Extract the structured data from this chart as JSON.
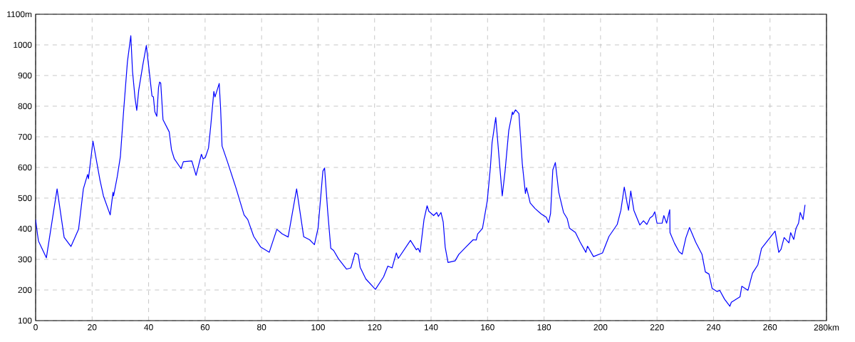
{
  "chart_data": {
    "type": "line",
    "x": [
      0,
      0.7,
      1,
      3.8,
      7.6,
      10.1,
      12.5,
      15.2,
      16.9,
      18.4,
      18.7,
      20.3,
      22.8,
      24,
      26.4,
      27.4,
      27.6,
      28.9,
      30,
      31.2,
      32.5,
      33.7,
      34.3,
      35.2,
      35.8,
      36.5,
      38,
      39.2,
      40.5,
      41.2,
      41.7,
      42.2,
      42.9,
      43.5,
      43.9,
      44.3,
      45.1,
      47.3,
      48.1,
      49.1,
      51.5,
      52.3,
      55.3,
      56.8,
      58.7,
      59.3,
      60.1,
      61.2,
      62,
      63.1,
      63.5,
      65,
      65.5,
      66,
      67.9,
      70.9,
      73.8,
      75.1,
      77.2,
      79.7,
      82.7,
      85.4,
      87.3,
      89.4,
      92.4,
      94.9,
      97,
      98.7,
      100,
      101.7,
      102.3,
      103.4,
      104.5,
      105.5,
      107.2,
      110.1,
      111.6,
      113.1,
      114.2,
      114.9,
      116.9,
      120.3,
      123.2,
      124.7,
      126.2,
      127.7,
      128.4,
      132.7,
      134.8,
      135.4,
      136.1,
      137.5,
      138.6,
      139.2,
      140.9,
      142,
      142.6,
      143.5,
      144.3,
      145,
      146,
      148.5,
      149.8,
      152.3,
      154.9,
      156,
      156.5,
      158.2,
      159.9,
      161,
      161.6,
      162.9,
      163.7,
      164.6,
      165.2,
      166.2,
      167.5,
      168.8,
      169,
      169.9,
      171.1,
      172.3,
      173.4,
      173.8,
      175.1,
      176.8,
      178.9,
      180.8,
      181.6,
      182.3,
      183.1,
      184,
      185.2,
      186.9,
      188.2,
      189,
      191.1,
      192.8,
      194.8,
      195.4,
      197.5,
      200.7,
      203,
      205.9,
      207.2,
      208.4,
      209.4,
      209.9,
      210.7,
      211.8,
      213.9,
      215.2,
      216.4,
      217.5,
      218.5,
      219.2,
      220,
      221.8,
      222.4,
      223.4,
      224.1,
      224.5,
      224.6,
      226.2,
      227.8,
      228.9,
      230.2,
      231.5,
      233.7,
      235.9,
      237.1,
      238.4,
      239.5,
      241.3,
      242.2,
      243.9,
      245.8,
      246.3,
      249.4,
      250,
      252.2,
      253.8,
      255.7,
      257,
      261.8,
      263.1,
      263.9,
      265,
      266.7,
      267.3,
      268.4,
      269.2,
      270.1,
      270.7,
      271.7,
      272.4
    ],
    "series": [
      {
        "color": "#0000ff",
        "values": [
          430,
          379,
          360,
          305,
          530,
          372,
          342,
          398,
          530,
          577,
          563,
          686,
          558,
          507,
          445,
          519,
          507,
          570,
          635,
          790,
          945,
          1030,
          914,
          826,
          786,
          852,
          937,
          998,
          891,
          833,
          830,
          782,
          767,
          860,
          879,
          875,
          756,
          716,
          658,
          628,
          596,
          619,
          621,
          574,
          643,
          628,
          633,
          663,
          736,
          848,
          830,
          874,
          790,
          670,
          619,
          534,
          445,
          430,
          375,
          340,
          323,
          398,
          383,
          373,
          530,
          374,
          364,
          348,
          402,
          588,
          598,
          457,
          336,
          329,
          302,
          268,
          272,
          321,
          315,
          274,
          236,
          202,
          243,
          278,
          272,
          321,
          303,
          362,
          331,
          336,
          323,
          430,
          475,
          457,
          443,
          453,
          440,
          453,
          422,
          340,
          290,
          295,
          316,
          340,
          364,
          363,
          383,
          401,
          491,
          600,
          681,
          763,
          674,
          573,
          507,
          588,
          720,
          781,
          773,
          788,
          776,
          612,
          515,
          534,
          484,
          466,
          449,
          437,
          420,
          449,
          592,
          616,
          519,
          453,
          433,
          402,
          388,
          356,
          323,
          343,
          309,
          321,
          375,
          414,
          460,
          536,
          484,
          460,
          523,
          460,
          412,
          426,
          414,
          435,
          442,
          455,
          418,
          418,
          443,
          418,
          447,
          462,
          387,
          352,
          325,
          317,
          370,
          404,
          356,
          317,
          259,
          252,
          205,
          195,
          199,
          170,
          147,
          160,
          178,
          212,
          199,
          255,
          282,
          336,
          392,
          323,
          333,
          371,
          354,
          387,
          365,
          401,
          418,
          453,
          430,
          478
        ]
      }
    ],
    "xlim": [
      0,
      280
    ],
    "ylim": [
      100,
      1100
    ],
    "xticks": [
      0,
      20,
      40,
      60,
      80,
      100,
      120,
      140,
      160,
      180,
      200,
      220,
      240,
      260,
      {
        "value": 280,
        "label": "280km"
      }
    ],
    "yticks": [
      100,
      200,
      300,
      400,
      500,
      600,
      700,
      800,
      900,
      1000,
      {
        "value": 1100,
        "label": "1100m"
      }
    ],
    "grid": true
  }
}
